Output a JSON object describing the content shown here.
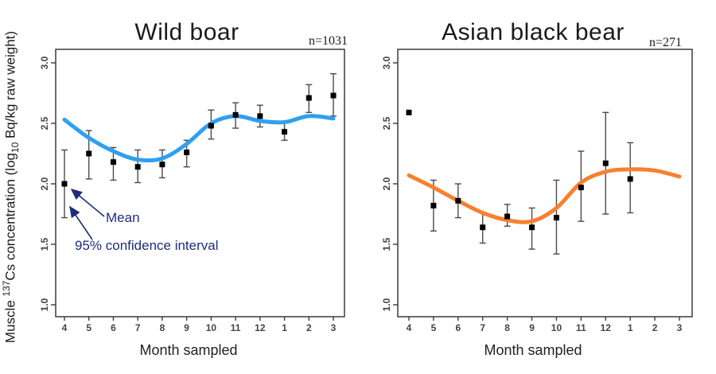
{
  "figure": {
    "ylabel": {
      "pre": "Muscle ",
      "sup": "137",
      "mid": "Cs concentration (log",
      "sub": "10",
      "post": " Bq/kg raw weight)"
    },
    "annotations": {
      "mean_label": "Mean",
      "ci_label": "95% confidence interval"
    },
    "colors": {
      "wild_boar_trend": "#2f9ff0",
      "black_bear_trend": "#f8802e",
      "annotation_navy": "#1e2d7d",
      "axis_frame": "#3c3c3c",
      "tick_text": "#444444",
      "error_bar": "#4a4a4a",
      "point": "#000000"
    }
  },
  "chart_data": [
    {
      "type": "line",
      "title": "Wild boar",
      "n_label": "n=1031",
      "xlabel": "Month sampled",
      "ylabel": "Muscle 137Cs concentration (log10 Bq/kg raw weight)",
      "categories": [
        "4",
        "5",
        "6",
        "7",
        "8",
        "9",
        "10",
        "11",
        "12",
        "1",
        "2",
        "3"
      ],
      "yticks": [
        1.0,
        1.5,
        2.0,
        2.5,
        3.0
      ],
      "ylim": [
        0.9,
        3.1
      ],
      "grid": false,
      "legend": "none",
      "series": [
        {
          "name": "monthly mean with 95% CI",
          "style": "points-with-error-bars",
          "values": [
            2.0,
            2.25,
            2.18,
            2.14,
            2.16,
            2.26,
            2.48,
            2.57,
            2.56,
            2.43,
            2.71,
            2.73
          ],
          "ci_low": [
            1.72,
            2.04,
            2.03,
            2.01,
            2.05,
            2.14,
            2.37,
            2.46,
            2.47,
            2.36,
            2.59,
            2.56
          ],
          "ci_high": [
            2.28,
            2.44,
            2.3,
            2.28,
            2.28,
            2.36,
            2.61,
            2.67,
            2.65,
            2.51,
            2.82,
            2.91
          ]
        },
        {
          "name": "smoothed trend",
          "style": "smooth-line",
          "color": "#2f9ff0",
          "values": [
            2.53,
            2.38,
            2.27,
            2.2,
            2.21,
            2.33,
            2.5,
            2.56,
            2.52,
            2.51,
            2.56,
            2.54
          ]
        }
      ]
    },
    {
      "type": "line",
      "title": "Asian black bear",
      "n_label": "n=271",
      "xlabel": "Month sampled",
      "ylabel": "Muscle 137Cs concentration (log10 Bq/kg raw weight)",
      "categories": [
        "4",
        "5",
        "6",
        "7",
        "8",
        "9",
        "10",
        "11",
        "12",
        "1",
        "2",
        "3"
      ],
      "yticks": [
        1.0,
        1.5,
        2.0,
        2.5,
        3.0
      ],
      "ylim": [
        0.9,
        3.1
      ],
      "grid": false,
      "legend": "none",
      "series": [
        {
          "name": "monthly mean with 95% CI",
          "style": "points-with-error-bars",
          "values": [
            2.59,
            1.82,
            1.86,
            1.64,
            1.73,
            1.64,
            1.72,
            1.97,
            2.17,
            2.04,
            null,
            null
          ],
          "ci_low": [
            null,
            1.61,
            1.72,
            1.51,
            1.65,
            1.46,
            1.42,
            1.69,
            1.75,
            1.76,
            null,
            null
          ],
          "ci_high": [
            null,
            2.03,
            2.0,
            1.76,
            1.83,
            1.8,
            2.03,
            2.27,
            2.59,
            2.34,
            null,
            null
          ]
        },
        {
          "name": "smoothed trend",
          "style": "smooth-line",
          "color": "#f8802e",
          "values": [
            2.07,
            1.97,
            1.86,
            1.76,
            1.7,
            1.69,
            1.8,
            2.01,
            2.1,
            2.12,
            2.11,
            2.06
          ]
        }
      ]
    }
  ]
}
